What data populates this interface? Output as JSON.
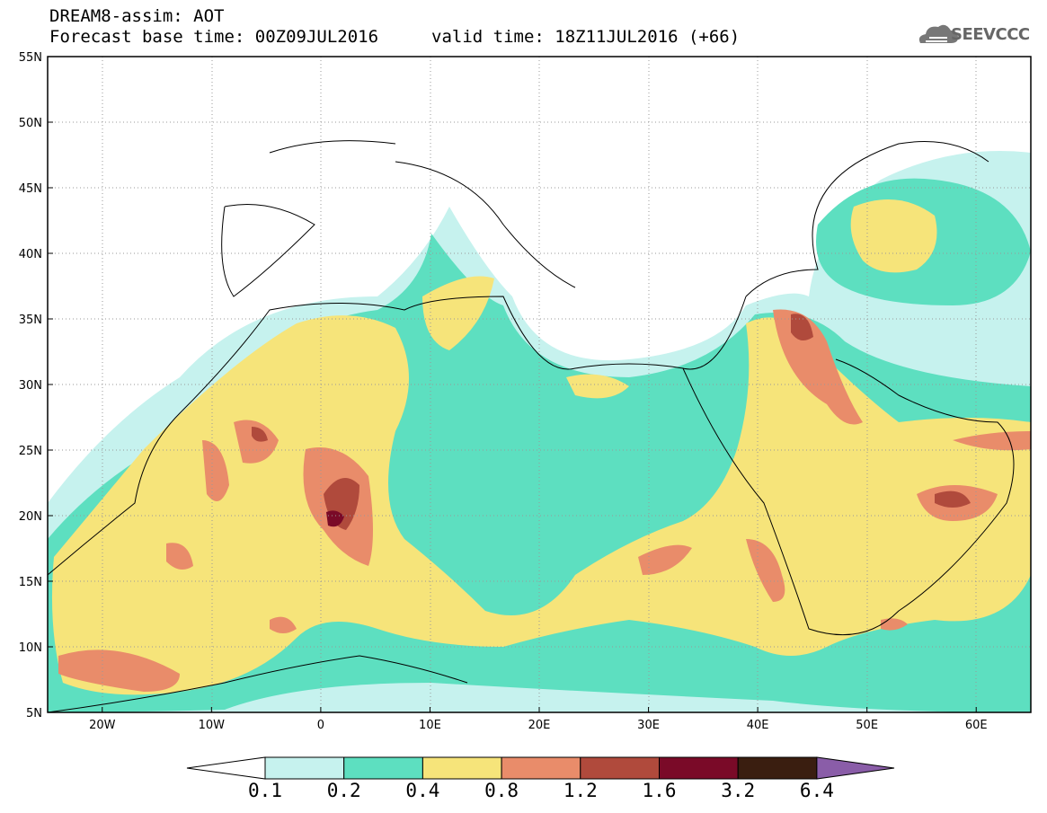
{
  "header": {
    "line1": "DREAM8-assim: AOT",
    "line2": "Forecast base time: 00Z09JUL2016",
    "valid": "valid time: 18Z11JUL2016 (+66)",
    "logo_text": "SEEVCCC"
  },
  "map": {
    "lat_labels": [
      "55N",
      "50N",
      "45N",
      "40N",
      "35N",
      "30N",
      "25N",
      "20N",
      "15N",
      "10N",
      "5N"
    ],
    "lon_labels": [
      "20W",
      "10W",
      "0",
      "10E",
      "20E",
      "30E",
      "40E",
      "50E",
      "60E"
    ],
    "lon_range": [
      -25,
      65
    ],
    "lat_range": [
      5,
      55
    ]
  },
  "colorbar": {
    "levels": [
      "0.1",
      "0.2",
      "0.4",
      "0.8",
      "1.2",
      "1.6",
      "3.2",
      "6.4"
    ],
    "colors": [
      "#c6f2ee",
      "#5ddfc0",
      "#f6e47a",
      "#e98c6a",
      "#b04a3c",
      "#7a0a28",
      "#3a1e10",
      "#8a5da8"
    ]
  }
}
